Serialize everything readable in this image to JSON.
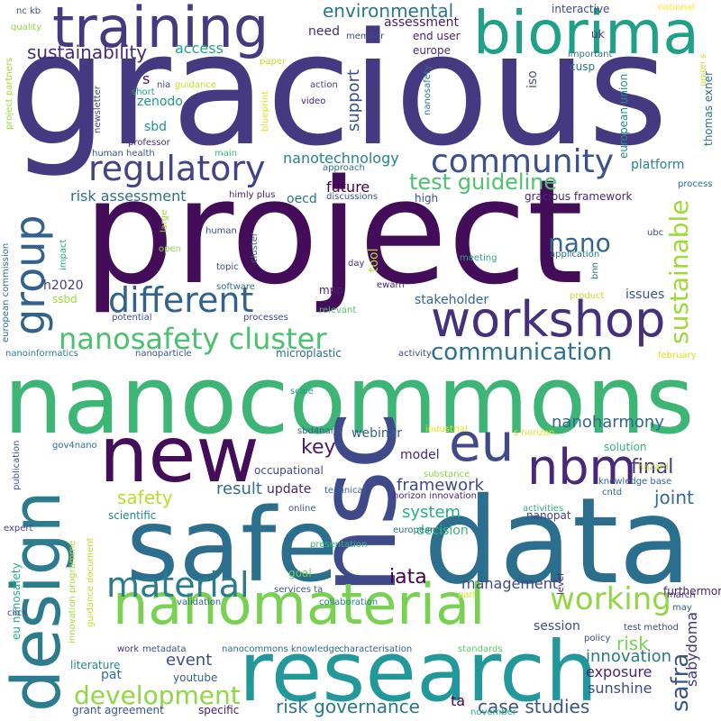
{
  "cloud": {
    "words": [
      {
        "text": "gracious",
        "color": "#453a82"
      },
      {
        "text": "project",
        "color": "#440d5a"
      },
      {
        "text": "nanocommons",
        "color": "#3cb575"
      },
      {
        "text": "data",
        "color": "#2c6e8e"
      },
      {
        "text": "research",
        "color": "#23989b"
      },
      {
        "text": "safe",
        "color": "#2c6e8e"
      },
      {
        "text": "training",
        "color": "#443a82"
      },
      {
        "text": "biorima",
        "color": "#1fa187"
      },
      {
        "text": "nsc",
        "color": "#3f4a8a"
      },
      {
        "text": "new",
        "color": "#440d5a"
      },
      {
        "text": "design",
        "color": "#2c7c8e"
      },
      {
        "text": "nanomaterial",
        "color": "#79d151"
      },
      {
        "text": "workshop",
        "color": "#46307e"
      },
      {
        "text": "nbm",
        "color": "#482878"
      },
      {
        "text": "eu",
        "color": "#3f4a8a"
      },
      {
        "text": "group",
        "color": "#33638d"
      },
      {
        "text": "regulatory",
        "color": "#414487"
      },
      {
        "text": "community",
        "color": "#3b518b"
      },
      {
        "text": "different",
        "color": "#33638d"
      },
      {
        "text": "nanosafety cluster",
        "color": "#4ac16d"
      },
      {
        "text": "material",
        "color": "#287c8e"
      },
      {
        "text": "working",
        "color": "#90d743"
      },
      {
        "text": "development",
        "color": "#8fd744"
      },
      {
        "text": "sustainable",
        "color": "#9fd938"
      },
      {
        "text": "communication",
        "color": "#2b748e"
      },
      {
        "text": "test guideline",
        "color": "#4cc26c"
      },
      {
        "text": "nano",
        "color": "#31678e"
      },
      {
        "text": "sustainability",
        "color": "#482878"
      },
      {
        "text": "environmental",
        "color": "#2a788e"
      },
      {
        "text": "risk governance",
        "color": "#2a788e"
      },
      {
        "text": "case studies",
        "color": "#3a548c"
      },
      {
        "text": "safra",
        "color": "#3a548c"
      },
      {
        "text": "iata",
        "color": "#440154"
      },
      {
        "text": "nanoharmony",
        "color": "#31688e"
      },
      {
        "text": "framework",
        "color": "#3e4a89"
      },
      {
        "text": "final",
        "color": "#453781"
      },
      {
        "text": "joint",
        "color": "#2f6c8e"
      },
      {
        "text": "key",
        "color": "#481f70"
      },
      {
        "text": "safety",
        "color": "#b8de29"
      },
      {
        "text": "result",
        "color": "#2e6e8e"
      },
      {
        "text": "system",
        "color": "#29af7f"
      },
      {
        "text": "risk assessment",
        "color": "#2e6f8e"
      },
      {
        "text": "nanotechnology",
        "color": "#25838e"
      },
      {
        "text": "platform",
        "color": "#25858e"
      },
      {
        "text": "future",
        "color": "#440154"
      },
      {
        "text": "support",
        "color": "#3b528b"
      },
      {
        "text": "need",
        "color": "#472c7a"
      },
      {
        "text": "access",
        "color": "#20a486"
      },
      {
        "text": "s",
        "color": "#481467"
      },
      {
        "text": "risk",
        "color": "#7ad151"
      },
      {
        "text": "event",
        "color": "#3d4e8a"
      },
      {
        "text": "innovation",
        "color": "#2a778e"
      },
      {
        "text": "exposure",
        "color": "#482576"
      },
      {
        "text": "sunshine",
        "color": "#3e4a89"
      },
      {
        "text": "sabydoma",
        "color": "#46337f"
      },
      {
        "text": "management",
        "color": "#3f4889"
      },
      {
        "text": "model",
        "color": "#482878"
      },
      {
        "text": "update",
        "color": "#482677"
      },
      {
        "text": "decision",
        "color": "#35b779"
      },
      {
        "text": "webinar",
        "color": "#34608d"
      },
      {
        "text": "stakeholder",
        "color": "#31688e"
      },
      {
        "text": "issues",
        "color": "#3b528b"
      },
      {
        "text": "tool",
        "color": "#b5de2b"
      },
      {
        "text": "h2020",
        "color": "#433e85"
      },
      {
        "text": "sbd",
        "color": "#1f968b"
      },
      {
        "text": "oecd",
        "color": "#2c718e"
      },
      {
        "text": "mnp",
        "color": "#482173"
      },
      {
        "text": "zenodo",
        "color": "#1e9b8a"
      },
      {
        "text": "iso",
        "color": "#3a538b"
      },
      {
        "text": "assessment",
        "color": "#481d6f"
      },
      {
        "text": "european union",
        "color": "#218e8d"
      },
      {
        "text": "goal",
        "color": "#6ccd5a"
      },
      {
        "text": "session",
        "color": "#3e4c8a"
      },
      {
        "text": "furthermore",
        "color": "#481f70"
      },
      {
        "text": "pat",
        "color": "#2e6f8e"
      },
      {
        "text": "ta",
        "color": "#440154"
      },
      {
        "text": "solution",
        "color": "#35b779"
      },
      {
        "text": "nanopat",
        "color": "#404688"
      },
      {
        "text": "occupational",
        "color": "#3e4989"
      },
      {
        "text": "scientific",
        "color": "#23888e"
      },
      {
        "text": "literature",
        "color": "#24878e"
      },
      {
        "text": "youtube",
        "color": "#34618d"
      },
      {
        "text": "grant agreement",
        "color": "#38588c"
      },
      {
        "text": "specific",
        "color": "#481d6f"
      },
      {
        "text": "end user",
        "color": "#482575"
      },
      {
        "text": "europe",
        "color": "#472f7d"
      },
      {
        "text": "member",
        "color": "#3f4889"
      },
      {
        "text": "interactive",
        "color": "#3e4a89"
      },
      {
        "text": "national",
        "color": "#fde725"
      },
      {
        "text": "uk",
        "color": "#453581"
      },
      {
        "text": "important",
        "color": "#2a788e"
      },
      {
        "text": "cusp",
        "color": "#2d708e"
      },
      {
        "text": "thomas exner",
        "color": "#2c728e"
      },
      {
        "text": "union s",
        "color": "#cde11d"
      },
      {
        "text": "nanosafety",
        "color": "#2b758e"
      },
      {
        "text": "nia",
        "color": "#3f4889"
      },
      {
        "text": "guidance",
        "color": "#c8e020"
      },
      {
        "text": "short",
        "color": "#20a386"
      },
      {
        "text": "action",
        "color": "#433d84"
      },
      {
        "text": "video",
        "color": "#482475"
      },
      {
        "text": "professor",
        "color": "#472d7b"
      },
      {
        "text": "human health",
        "color": "#3a548c"
      },
      {
        "text": "main",
        "color": "#3aba76"
      },
      {
        "text": "newsletter",
        "color": "#3e4989"
      },
      {
        "text": "blueprint",
        "color": "#dde318"
      },
      {
        "text": "approach",
        "color": "#2c718e"
      },
      {
        "text": "discussions",
        "color": "#39558c"
      },
      {
        "text": "himly plus",
        "color": "#482475"
      },
      {
        "text": "gracious framework",
        "color": "#482878"
      },
      {
        "text": "high",
        "color": "#3b528b"
      },
      {
        "text": "process",
        "color": "#2c728e"
      },
      {
        "text": "large",
        "color": "#a2da37"
      },
      {
        "text": "cluster",
        "color": "#365d8d"
      },
      {
        "text": "human",
        "color": "#3b518b"
      },
      {
        "text": "open",
        "color": "#8ed645"
      },
      {
        "text": "impact",
        "color": "#26ad81"
      },
      {
        "text": "european commission",
        "color": "#2e6f8e"
      },
      {
        "text": "topic",
        "color": "#3e4a89"
      },
      {
        "text": "day",
        "color": "#46337f"
      },
      {
        "text": "software",
        "color": "#2d708e"
      },
      {
        "text": "processes",
        "color": "#3e4989"
      },
      {
        "text": "relevant",
        "color": "#52c569"
      },
      {
        "text": "potential",
        "color": "#3b528b"
      },
      {
        "text": "ewarn",
        "color": "#481b6d"
      },
      {
        "text": "meeting",
        "color": "#22a884"
      },
      {
        "text": "application",
        "color": "#2c718e"
      },
      {
        "text": "bnn",
        "color": "#2b758e"
      },
      {
        "text": "ubc",
        "color": "#3e4c8a"
      },
      {
        "text": "product",
        "color": "#c0df25"
      },
      {
        "text": "ssbd",
        "color": "#a2da37"
      },
      {
        "text": "nanoinformatics",
        "color": "#26828e"
      },
      {
        "text": "nanoparticle",
        "color": "#38588c"
      },
      {
        "text": "microplastic",
        "color": "#2c718e"
      },
      {
        "text": "activity",
        "color": "#3f4889"
      },
      {
        "text": "february",
        "color": "#d8e219"
      },
      {
        "text": "scale",
        "color": "#1f9e89"
      },
      {
        "text": "industrial",
        "color": "#e5e419"
      },
      {
        "text": "s horizon",
        "color": "#dde318"
      },
      {
        "text": "sbd4nano",
        "color": "#365d8d"
      },
      {
        "text": "gov4nano",
        "color": "#2c718e"
      },
      {
        "text": "eu nanosafety",
        "color": "#25ab82"
      },
      {
        "text": "innovation programme",
        "color": "#a8db34"
      },
      {
        "text": "guidance document",
        "color": "#bddf26"
      },
      {
        "text": "expert",
        "color": "#3f4788"
      },
      {
        "text": "click",
        "color": "#3e4c8a"
      },
      {
        "text": "publication",
        "color": "#3b528b"
      },
      {
        "text": "substance",
        "color": "#8bd646"
      },
      {
        "text": "technical",
        "color": "#31688e"
      },
      {
        "text": "online",
        "color": "#39568c"
      },
      {
        "text": "horizon innovation",
        "color": "#482475"
      },
      {
        "text": "cntd",
        "color": "#33638d"
      },
      {
        "text": "knowledge base",
        "color": "#33638d"
      },
      {
        "text": "hazard",
        "color": "#b5de2b"
      },
      {
        "text": "activities",
        "color": "#2db27d"
      },
      {
        "text": "european",
        "color": "#2b748e"
      },
      {
        "text": "presentation",
        "color": "#35b779"
      },
      {
        "text": "services ta",
        "color": "#39568c"
      },
      {
        "text": "collaboration",
        "color": "#26828e"
      },
      {
        "text": "part",
        "color": "#d2e21b"
      },
      {
        "text": "level",
        "color": "#482173"
      },
      {
        "text": "march",
        "color": "#46337f"
      },
      {
        "text": "may",
        "color": "#34608d"
      },
      {
        "text": "test method",
        "color": "#404688"
      },
      {
        "text": "policy",
        "color": "#3e4a89"
      },
      {
        "text": "validation",
        "color": "#31688e"
      },
      {
        "text": "work",
        "color": "#46327e"
      },
      {
        "text": "metadata",
        "color": "#39568c"
      },
      {
        "text": "nanocommons knowledge",
        "color": "#2e6f8e"
      },
      {
        "text": "characterisation",
        "color": "#34608d"
      },
      {
        "text": "standards",
        "color": "#5ec962"
      },
      {
        "text": "november",
        "color": "#26ad81"
      },
      {
        "text": "nc kb",
        "color": "#3b528b"
      },
      {
        "text": "quality",
        "color": "#8ed645"
      },
      {
        "text": "project partners",
        "color": "#a0da39"
      },
      {
        "text": "paper",
        "color": "#c2df23"
      }
    ]
  }
}
